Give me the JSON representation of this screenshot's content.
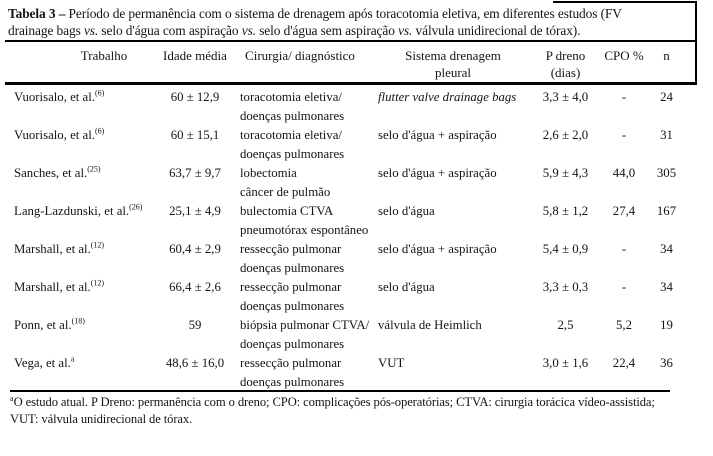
{
  "caption": {
    "label": "Tabela 3 –",
    "line1": " Período de permanência com o sistema de drenagem após toracotomia eletiva, em diferentes estudos (FV",
    "line2_a": "drainage bags ",
    "vs1": "vs.",
    "line2_b": " selo d'água com aspiração ",
    "vs2": "vs.",
    "line2_c": " selo d'água sem aspiração ",
    "vs3": "vs.",
    "line2_d": " válvula unidirecional de tórax)."
  },
  "header": {
    "trabalho": "Trabalho",
    "idade": "Idade média",
    "cirurgia": "Cirurgia/ diagnóstico",
    "sistema_l1": "Sistema drenagem",
    "sistema_l2": "pleural",
    "pdreno_l1": "P dreno",
    "pdreno_l2": "(dias)",
    "cpo": "CPO %",
    "n": "n"
  },
  "rows": [
    {
      "study": "Vuorisalo, et al.",
      "ref": "(6)",
      "idade": "60 ± 12,9",
      "cirurgia1": "toracotomia eletiva/",
      "cirurgia2": "doenças pulmonares",
      "sistema": "flutter valve drainage bags",
      "pdreno": "3,3 ± 4,0",
      "cpo": "-",
      "n": "24"
    },
    {
      "study": "Vuorisalo, et al.",
      "ref": "(6)",
      "idade": "60 ± 15,1",
      "cirurgia1": "toracotomia eletiva/",
      "cirurgia2": "doenças pulmonares",
      "sistema": "selo d'água + aspiração",
      "pdreno": "2,6 ± 2,0",
      "cpo": "-",
      "n": "31"
    },
    {
      "study": "Sanches, et al.",
      "ref": "(25)",
      "idade": "63,7 ± 9,7",
      "cirurgia1": "lobectomia",
      "cirurgia2": "câncer de pulmão",
      "sistema": "selo d'água + aspiração",
      "pdreno": "5,9 ± 4,3",
      "cpo": "44,0",
      "n": "305"
    },
    {
      "study": "Lang-Lazdunski, et al.",
      "ref": "(26)",
      "idade": "25,1 ± 4,9",
      "cirurgia1": "bulectomia CTVA",
      "cirurgia2": "pneumotórax espontâneo",
      "sistema": "selo d'água",
      "pdreno": "5,8 ± 1,2",
      "cpo": "27,4",
      "n": "167"
    },
    {
      "study": "Marshall, et al.",
      "ref": "(12)",
      "idade": "60,4 ± 2,9",
      "cirurgia1": "ressecção pulmonar",
      "cirurgia2": "doenças pulmonares",
      "sistema": "selo d'água + aspiração",
      "pdreno": "5,4 ± 0,9",
      "cpo": "-",
      "n": "34"
    },
    {
      "study": "Marshall, et al.",
      "ref": "(12)",
      "idade": "66,4 ± 2,6",
      "cirurgia1": "ressecção pulmonar",
      "cirurgia2": "doenças pulmonares",
      "sistema": "selo d'água",
      "pdreno": "3,3 ± 0,3",
      "cpo": "-",
      "n": "34"
    },
    {
      "study": "Ponn, et al.",
      "ref": "(18)",
      "idade": "59",
      "cirurgia1": "biópsia pulmonar CTVA/",
      "cirurgia2": "doenças pulmonares",
      "sistema": "válvula de Heimlich",
      "pdreno": "2,5",
      "cpo": "5,2",
      "n": "19"
    },
    {
      "study": "Vega, et al.",
      "ref": "a",
      "idade": "48,6 ± 16,0",
      "cirurgia1": "ressecção pulmonar",
      "cirurgia2": "doenças pulmonares",
      "sistema": "VUT",
      "pdreno": "3,0 ± 1,6",
      "cpo": "22,4",
      "n": "36"
    }
  ],
  "footnote": {
    "sup": "a",
    "line1": "O estudo atual. P Dreno: permanência com o dreno; CPO: complicações pós-operatórias; CTVA: cirurgia torácica vídeo-assistida;",
    "line2": "VUT: válvula unidirecional de tórax."
  },
  "colors": {
    "text": "#141414",
    "rule": "#000000",
    "background": "#ffffff"
  }
}
